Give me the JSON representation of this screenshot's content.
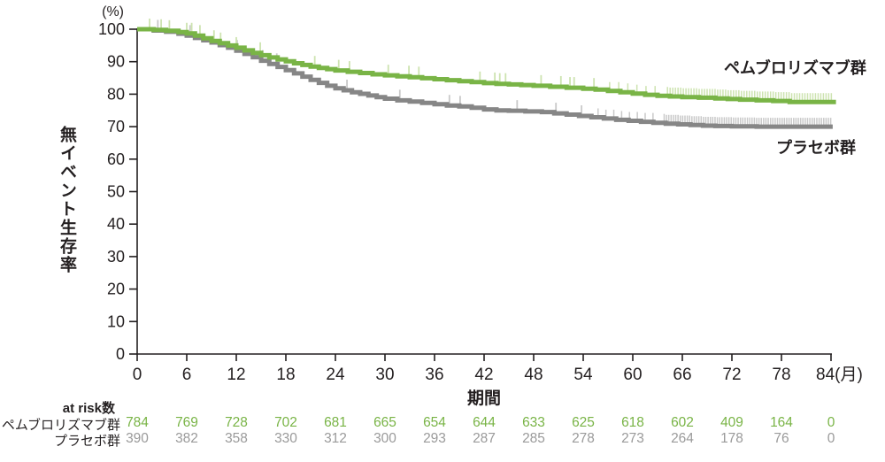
{
  "chart_data": {
    "type": "line",
    "subtype": "kaplan_meier_step_survival",
    "y_unit_label": "(%)",
    "ylabel": "無イベント生存率",
    "xlabel": "期間",
    "x_axis_unit_suffix": "(月)",
    "xlim": [
      0,
      84
    ],
    "ylim": [
      0,
      100
    ],
    "grid": false,
    "legend_position": "right-of-curves",
    "axis_color": "#231f20",
    "x_ticks": [
      {
        "value": 0,
        "label": "0"
      },
      {
        "value": 6,
        "label": "6"
      },
      {
        "value": 12,
        "label": "12"
      },
      {
        "value": 18,
        "label": "18"
      },
      {
        "value": 24,
        "label": "24"
      },
      {
        "value": 30,
        "label": "30"
      },
      {
        "value": 36,
        "label": "36"
      },
      {
        "value": 42,
        "label": "42"
      },
      {
        "value": 48,
        "label": "48"
      },
      {
        "value": 54,
        "label": "54"
      },
      {
        "value": 60,
        "label": "60"
      },
      {
        "value": 66,
        "label": "66"
      },
      {
        "value": 72,
        "label": "72"
      },
      {
        "value": 78,
        "label": "78"
      },
      {
        "value": 84,
        "label": "84(月)"
      }
    ],
    "y_ticks": [
      0,
      10,
      20,
      30,
      40,
      50,
      60,
      70,
      80,
      90,
      100
    ],
    "series": [
      {
        "name": "ペムブロリズマブ群",
        "color": "#79b446",
        "censor_color": "#cde3b0",
        "final_value_pct": 77.6,
        "points": [
          [
            0,
            100
          ],
          [
            2,
            99.8
          ],
          [
            3.5,
            99.5
          ],
          [
            5,
            99.1
          ],
          [
            6,
            98.7
          ],
          [
            7,
            98.0
          ],
          [
            8,
            97.2
          ],
          [
            9,
            96.4
          ],
          [
            10,
            95.7
          ],
          [
            11,
            95.0
          ],
          [
            12,
            94.3
          ],
          [
            13,
            93.5
          ],
          [
            14,
            92.7
          ],
          [
            15,
            92.0
          ],
          [
            16,
            91.3
          ],
          [
            17,
            90.7
          ],
          [
            18,
            90.1
          ],
          [
            19,
            89.5
          ],
          [
            20,
            89.0
          ],
          [
            21,
            88.5
          ],
          [
            22,
            88.1
          ],
          [
            23,
            87.7
          ],
          [
            24,
            87.3
          ],
          [
            25.5,
            86.9
          ],
          [
            27,
            86.5
          ],
          [
            28.5,
            86.1
          ],
          [
            30,
            85.8
          ],
          [
            31.5,
            85.5
          ],
          [
            33,
            85.2
          ],
          [
            34.5,
            84.9
          ],
          [
            36,
            84.6
          ],
          [
            37.5,
            84.3
          ],
          [
            39,
            84.0
          ],
          [
            40.5,
            83.7
          ],
          [
            42,
            83.4
          ],
          [
            43.5,
            83.2
          ],
          [
            45,
            83.0
          ],
          [
            46.5,
            82.8
          ],
          [
            48,
            82.6
          ],
          [
            50,
            82.3
          ],
          [
            52,
            82.0
          ],
          [
            54,
            81.7
          ],
          [
            55.5,
            81.4
          ],
          [
            57,
            81.0
          ],
          [
            58.5,
            80.6
          ],
          [
            60,
            80.2
          ],
          [
            61.5,
            79.8
          ],
          [
            63,
            79.5
          ],
          [
            64.5,
            79.3
          ],
          [
            66,
            79.1
          ],
          [
            68,
            78.9
          ],
          [
            70,
            78.7
          ],
          [
            71.5,
            78.5
          ],
          [
            73,
            78.3
          ],
          [
            75,
            78.1
          ],
          [
            77,
            77.9
          ],
          [
            79,
            77.6
          ],
          [
            84.6,
            77.6
          ]
        ],
        "censor_ticks": [
          1.5,
          2.9,
          3.9,
          6.0,
          6.6,
          7.6,
          9.3,
          10.1,
          12.0,
          14.9,
          21.5,
          24.4,
          25.7,
          30.4,
          32.9,
          34.1,
          41.5,
          43.3,
          43.9,
          44.6,
          48.9,
          51.3,
          52.4,
          52.9,
          55.3
        ],
        "censor_bands": [
          {
            "start": 57.2,
            "end": 63.8,
            "step": 1.1
          },
          {
            "start": 64.2,
            "end": 84.3,
            "step": 0.32
          }
        ]
      },
      {
        "name": "プラセボ群",
        "color": "#868686",
        "censor_color": "#c9c9c9",
        "final_value_pct": 70.0,
        "points": [
          [
            0,
            100
          ],
          [
            2,
            99.6
          ],
          [
            3.5,
            99.2
          ],
          [
            5,
            98.6
          ],
          [
            6,
            98.0
          ],
          [
            7,
            97.3
          ],
          [
            8,
            96.6
          ],
          [
            9,
            95.9
          ],
          [
            10,
            95.1
          ],
          [
            11,
            94.3
          ],
          [
            12,
            93.4
          ],
          [
            13,
            92.4
          ],
          [
            14,
            91.4
          ],
          [
            15,
            90.3
          ],
          [
            16,
            89.3
          ],
          [
            17,
            88.4
          ],
          [
            18,
            87.4
          ],
          [
            19,
            86.4
          ],
          [
            20,
            85.4
          ],
          [
            21,
            84.4
          ],
          [
            22,
            83.5
          ],
          [
            23,
            82.6
          ],
          [
            24,
            81.8
          ],
          [
            25,
            81.2
          ],
          [
            26,
            80.6
          ],
          [
            27,
            80.1
          ],
          [
            28,
            79.6
          ],
          [
            29,
            79.1
          ],
          [
            30,
            78.6
          ],
          [
            31.5,
            78.1
          ],
          [
            33,
            77.7
          ],
          [
            34.5,
            77.3
          ],
          [
            36,
            76.9
          ],
          [
            37.5,
            76.5
          ],
          [
            39,
            76.2
          ],
          [
            40.5,
            75.8
          ],
          [
            42,
            75.3
          ],
          [
            43.5,
            75.0
          ],
          [
            45,
            74.9
          ],
          [
            47,
            74.7
          ],
          [
            49,
            74.5
          ],
          [
            50.5,
            74.1
          ],
          [
            52,
            73.7
          ],
          [
            53.5,
            73.3
          ],
          [
            55,
            72.9
          ],
          [
            56.5,
            72.5
          ],
          [
            58,
            72.1
          ],
          [
            59.5,
            71.8
          ],
          [
            61,
            71.5
          ],
          [
            62.5,
            71.2
          ],
          [
            64,
            70.9
          ],
          [
            65.5,
            70.7
          ],
          [
            67,
            70.5
          ],
          [
            68.5,
            70.3
          ],
          [
            70,
            70.2
          ],
          [
            72,
            70.1
          ],
          [
            75,
            70.0
          ],
          [
            84.2,
            70.0
          ]
        ],
        "censor_ticks": [
          2.5,
          6.4,
          12.1,
          15.2,
          16.9,
          25.4,
          31.8,
          37.8,
          39.1,
          46.0,
          50.7,
          53.8
        ],
        "censor_bands": [
          {
            "start": 55.8,
            "end": 63.4,
            "step": 0.95
          },
          {
            "start": 63.8,
            "end": 84.0,
            "step": 0.28
          }
        ]
      }
    ]
  },
  "at_risk": {
    "header": "at risk数",
    "rows": [
      {
        "label": "ペムブロリズマブ群",
        "color": "#79b446",
        "counts": [
          "784",
          "769",
          "728",
          "702",
          "681",
          "665",
          "654",
          "644",
          "633",
          "625",
          "618",
          "602",
          "409",
          "164",
          "0"
        ]
      },
      {
        "label": "プラセボ群",
        "color": "#9a9a9a",
        "counts": [
          "390",
          "382",
          "358",
          "330",
          "312",
          "300",
          "293",
          "287",
          "285",
          "278",
          "273",
          "264",
          "178",
          "76",
          "0"
        ]
      }
    ]
  }
}
